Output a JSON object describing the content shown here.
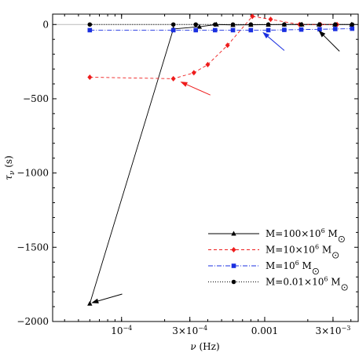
{
  "chart_data": {
    "type": "line",
    "title": "",
    "xlabel": {
      "main": "ν",
      "unit": " (Hz)"
    },
    "ylabel": {
      "main": "τ",
      "sub": "ν",
      "unit": " (s)"
    },
    "x_scale": "log",
    "xlim": [
      3.3e-05,
      0.0045
    ],
    "ylim": [
      -2000,
      70
    ],
    "x_ticks": [
      {
        "value": 0.0001,
        "label": "10",
        "exp": "−4"
      },
      {
        "value": 0.0003,
        "label": "3×10",
        "exp": "−4"
      },
      {
        "value": 0.001,
        "label": "0.001",
        "exp": ""
      },
      {
        "value": 0.003,
        "label": "3×10",
        "exp": "−3"
      }
    ],
    "y_ticks": [
      {
        "value": 0,
        "label": "0"
      },
      {
        "value": -500,
        "label": "−500"
      },
      {
        "value": -1000,
        "label": "−1000"
      },
      {
        "value": -1500,
        "label": "−1500"
      },
      {
        "value": -2000,
        "label": "−2000"
      }
    ],
    "legend_position": "bottom-right",
    "series": [
      {
        "name": {
          "base": "M=100×10",
          "exp": "6",
          "unit": " M"
        },
        "color": "#000000",
        "dash": "",
        "marker": "triangle",
        "x": [
          6e-05,
          0.00023,
          0.00035,
          0.00046,
          0.0006,
          0.0008,
          0.00106,
          0.00137,
          0.00182,
          0.00239,
          0.00309,
          0.00405
        ],
        "y": [
          -1880,
          -30,
          -15,
          0,
          -3,
          -2,
          -1,
          0,
          0,
          0,
          0,
          0
        ]
      },
      {
        "name": {
          "base": "M=10×10",
          "exp": "6",
          "unit": " M"
        },
        "color": "#ee1c1c",
        "dash": "4,3",
        "marker": "diamond",
        "x": [
          6e-05,
          0.00023,
          0.00032,
          0.0004,
          0.00055,
          0.00082,
          0.0011,
          0.00175,
          0.00245,
          0.0032
        ],
        "y": [
          -355,
          -365,
          -325,
          -270,
          -140,
          55,
          35,
          0,
          0,
          0
        ]
      },
      {
        "name": {
          "base": "M=10",
          "exp": "6",
          "unit": " M"
        },
        "color": "#1a2fe0",
        "dash": "6,2,1,2",
        "marker": "square",
        "x": [
          6e-05,
          0.00023,
          0.00033,
          0.00045,
          0.0006,
          0.0008,
          0.00106,
          0.00137,
          0.0018,
          0.00242,
          0.00311,
          0.00408
        ],
        "y": [
          -38,
          -38,
          -38,
          -38,
          -38,
          -38,
          -38,
          -36,
          -34,
          -32,
          -30,
          -28
        ]
      },
      {
        "name": {
          "base": "M=0.01×10",
          "exp": "6",
          "unit": " M"
        },
        "color": "#000000",
        "dash": "1,2",
        "marker": "circle",
        "x": [
          6e-05,
          0.00023,
          0.00033,
          0.00045,
          0.0006,
          0.0008,
          0.00106,
          0.00137,
          0.0018,
          0.00242,
          0.00311,
          0.00408
        ],
        "y": [
          0,
          0,
          0,
          0,
          0,
          0,
          0,
          0,
          0,
          0,
          0,
          0
        ]
      }
    ],
    "annotations": [
      {
        "type": "arrow",
        "color": "#000000",
        "from": [
          0.000101,
          -1815
        ],
        "to": [
          6.15e-05,
          -1875
        ]
      },
      {
        "type": "arrow",
        "color": "#ee1c1c",
        "from": [
          0.000417,
          -475
        ],
        "to": [
          0.000257,
          -385
        ]
      },
      {
        "type": "arrow",
        "color": "#1a2fe0",
        "from": [
          0.00137,
          -175
        ],
        "to": [
          0.000965,
          -50
        ]
      },
      {
        "type": "arrow",
        "color": "#000000",
        "from": [
          0.00333,
          -180
        ],
        "to": [
          0.00238,
          -40
        ]
      }
    ]
  }
}
